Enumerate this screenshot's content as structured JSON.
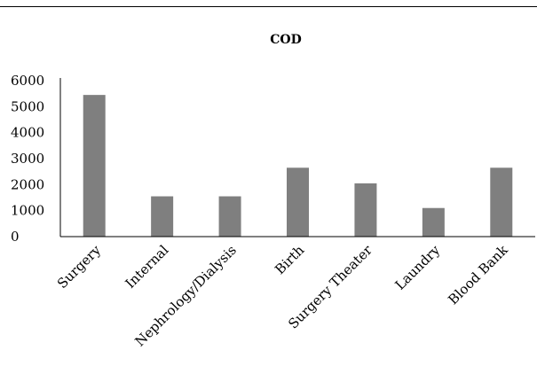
{
  "chart_data": {
    "type": "bar",
    "title": "COD",
    "xlabel": "",
    "ylabel": "",
    "categories": [
      "Surgery",
      "Internal",
      "Nephrology/Dialysis",
      "Birth",
      "Surgery Theater",
      "Laundry",
      "Blood Bank"
    ],
    "values": [
      5450,
      1550,
      1550,
      2650,
      2050,
      1100,
      2650
    ],
    "ylim": [
      0,
      6000
    ],
    "yticks": [
      "0",
      "1000",
      "2000",
      "3000",
      "4000",
      "5000",
      "6000"
    ],
    "grid": false,
    "legend": "none",
    "bar_color": "#7f7f7f"
  }
}
